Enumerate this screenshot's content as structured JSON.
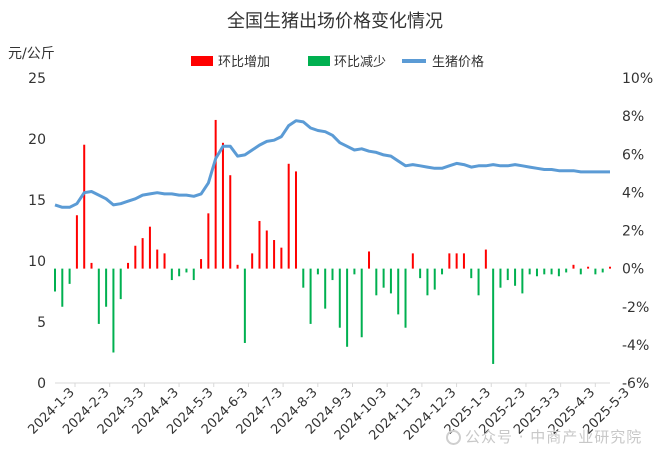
{
  "chart_data": {
    "type": "bar+line",
    "title": "全国生猪出场价格变化情况",
    "left_axis_label": "元/公斤",
    "left_axis_ticks": [
      "0",
      "5",
      "10",
      "15",
      "20",
      "25"
    ],
    "right_axis_ticks": [
      "-6%",
      "-4%",
      "-2%",
      "0%",
      "2%",
      "4%",
      "6%",
      "8%",
      "10%"
    ],
    "left_ylim": [
      0,
      25
    ],
    "right_ylim": [
      -6,
      10
    ],
    "x_ticks": [
      "2024-1-3",
      "2024-2-3",
      "2024-3-3",
      "2024-4-3",
      "2024-5-3",
      "2024-6-3",
      "2024-7-3",
      "2024-8-3",
      "2024-9-3",
      "2024-10-3",
      "2024-11-3",
      "2024-12-3",
      "2025-1-3",
      "2025-2-3",
      "2025-3-3",
      "2025-4-3",
      "2025-5-3"
    ],
    "legend": {
      "increase": "环比增加",
      "decrease": "环比减少",
      "price": "生猪价格"
    },
    "colors": {
      "increase": "#ff0000",
      "decrease": "#00b050",
      "price": "#5b9bd5"
    },
    "price_series": [
      14.6,
      14.4,
      14.4,
      14.7,
      15.6,
      15.7,
      15.4,
      15.1,
      14.6,
      14.7,
      14.9,
      15.1,
      15.4,
      15.5,
      15.6,
      15.5,
      15.5,
      15.4,
      15.4,
      15.3,
      15.5,
      16.4,
      18.4,
      19.4,
      19.4,
      18.6,
      18.7,
      19.1,
      19.5,
      19.8,
      19.9,
      20.2,
      21.1,
      21.5,
      21.4,
      20.9,
      20.7,
      20.6,
      20.3,
      19.7,
      19.4,
      19.1,
      19.2,
      19.0,
      18.9,
      18.7,
      18.6,
      18.2,
      17.8,
      17.9,
      17.8,
      17.7,
      17.6,
      17.6,
      17.8,
      18.0,
      17.9,
      17.7,
      17.8,
      17.8,
      17.9,
      17.8,
      17.8,
      17.9,
      17.8,
      17.7,
      17.6,
      17.5,
      17.5,
      17.4,
      17.4,
      17.4,
      17.3,
      17.3,
      17.3,
      17.3,
      17.3
    ],
    "mom_change_pct": [
      -1.2,
      -2.0,
      -0.8,
      2.8,
      6.5,
      0.3,
      -2.9,
      -2.0,
      -4.4,
      -1.6,
      0.3,
      1.2,
      1.6,
      2.2,
      1.0,
      0.8,
      -0.6,
      -0.4,
      -0.2,
      -0.6,
      0.5,
      2.9,
      7.8,
      6.6,
      4.9,
      0.2,
      -3.9,
      0.8,
      2.5,
      2.0,
      1.5,
      1.1,
      5.5,
      5.1,
      -1.0,
      -2.9,
      -0.3,
      -2.1,
      -0.6,
      -3.1,
      -4.1,
      -0.3,
      -3.6,
      0.9,
      -1.4,
      -1.0,
      -1.3,
      -2.4,
      -3.1,
      0.8,
      -0.5,
      -1.4,
      -1.1,
      -0.3,
      0.8,
      0.8,
      0.8,
      -0.5,
      -1.4,
      1.0,
      -5.0,
      -1.0,
      -0.6,
      -0.9,
      -1.3,
      -0.3,
      -0.4,
      -0.3,
      -0.3,
      -0.4,
      -0.2,
      0.2,
      -0.3,
      0.1,
      -0.3,
      -0.2,
      0.1
    ]
  },
  "watermark": "公众号 · 中商产业研究院"
}
